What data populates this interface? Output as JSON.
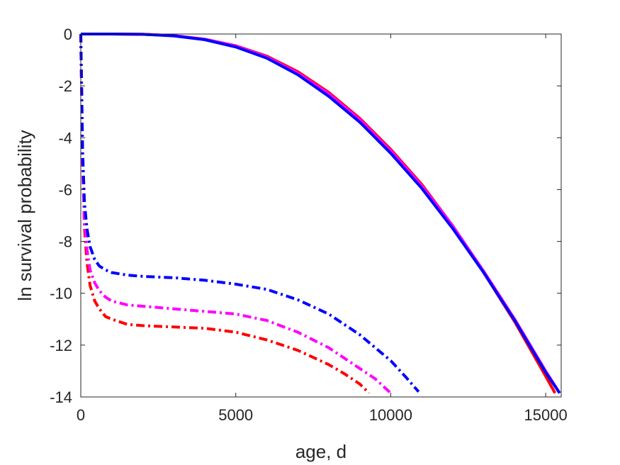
{
  "chart_data": {
    "type": "line",
    "title": "",
    "xlabel": "age, d",
    "ylabel": "ln survival probability",
    "xlim": [
      0,
      15500
    ],
    "ylim": [
      -14,
      0
    ],
    "xticks": [
      0,
      5000,
      10000,
      15000
    ],
    "xtick_labels": [
      "0",
      "5000",
      "10000",
      "15000"
    ],
    "yticks": [
      0,
      -2,
      -4,
      -6,
      -8,
      -10,
      -12,
      -14
    ],
    "ytick_labels": [
      "0",
      "-2",
      "-4",
      "-6",
      "-8",
      "-10",
      "-12",
      "-14"
    ],
    "grid": false,
    "legend": "none",
    "series": [
      {
        "color": "#ff0000",
        "style": "solid",
        "x": [
          0,
          1000,
          2000,
          3000,
          4000,
          5000,
          6000,
          7000,
          8000,
          9000,
          10000,
          11000,
          12000,
          13000,
          14000,
          15000,
          15300
        ],
        "y": [
          0,
          0,
          -0.01,
          -0.06,
          -0.2,
          -0.45,
          -0.85,
          -1.45,
          -2.25,
          -3.25,
          -4.45,
          -5.8,
          -7.4,
          -9.2,
          -11.1,
          -13.2,
          -13.85
        ]
      },
      {
        "color": "#ff00ff",
        "style": "solid",
        "x": [
          0,
          1000,
          2000,
          3000,
          4000,
          5000,
          6000,
          7000,
          8000,
          9000,
          10000,
          11000,
          12000,
          13000,
          14000,
          15000,
          15450
        ],
        "y": [
          0,
          0,
          -0.01,
          -0.06,
          -0.2,
          -0.46,
          -0.88,
          -1.5,
          -2.3,
          -3.3,
          -4.5,
          -5.85,
          -7.4,
          -9.15,
          -11.0,
          -13.0,
          -13.85
        ]
      },
      {
        "color": "#0000ff",
        "style": "solid",
        "x": [
          0,
          1000,
          2000,
          3000,
          4000,
          5000,
          6000,
          7000,
          8000,
          9000,
          10000,
          11000,
          12000,
          13000,
          14000,
          15000,
          15450
        ],
        "y": [
          0,
          0,
          -0.01,
          -0.07,
          -0.22,
          -0.5,
          -0.93,
          -1.57,
          -2.4,
          -3.4,
          -4.6,
          -5.95,
          -7.5,
          -9.2,
          -11.05,
          -13.05,
          -13.85
        ]
      },
      {
        "color": "#ff0000",
        "style": "dashdot",
        "x": [
          0,
          60,
          120,
          200,
          300,
          450,
          600,
          800,
          1000,
          1500,
          2000,
          3000,
          4000,
          5000,
          6000,
          7000,
          8000,
          8500,
          9000,
          9300
        ],
        "y": [
          0,
          -5.0,
          -7.5,
          -8.8,
          -9.7,
          -10.3,
          -10.6,
          -10.9,
          -11.0,
          -11.2,
          -11.25,
          -11.3,
          -11.35,
          -11.5,
          -11.8,
          -12.2,
          -12.75,
          -13.1,
          -13.5,
          -13.85
        ]
      },
      {
        "color": "#ff00ff",
        "style": "dashdot",
        "x": [
          0,
          60,
          120,
          200,
          300,
          450,
          600,
          800,
          1000,
          1500,
          2000,
          3000,
          4000,
          5000,
          6000,
          7000,
          8000,
          9000,
          9500,
          10000
        ],
        "y": [
          0,
          -5.0,
          -7.2,
          -8.3,
          -9.1,
          -9.6,
          -9.9,
          -10.15,
          -10.3,
          -10.45,
          -10.5,
          -10.6,
          -10.7,
          -10.8,
          -11.05,
          -11.5,
          -12.1,
          -12.9,
          -13.3,
          -13.85
        ]
      },
      {
        "color": "#0000ff",
        "style": "dashdot",
        "x": [
          0,
          60,
          120,
          200,
          300,
          450,
          600,
          800,
          1000,
          1500,
          2000,
          3000,
          4000,
          5000,
          6000,
          7000,
          8000,
          9000,
          10000,
          10500,
          10900
        ],
        "y": [
          0,
          -4.5,
          -6.5,
          -7.5,
          -8.2,
          -8.7,
          -8.95,
          -9.1,
          -9.2,
          -9.3,
          -9.35,
          -9.4,
          -9.5,
          -9.65,
          -9.85,
          -10.25,
          -10.8,
          -11.6,
          -12.6,
          -13.25,
          -13.8
        ]
      }
    ]
  }
}
